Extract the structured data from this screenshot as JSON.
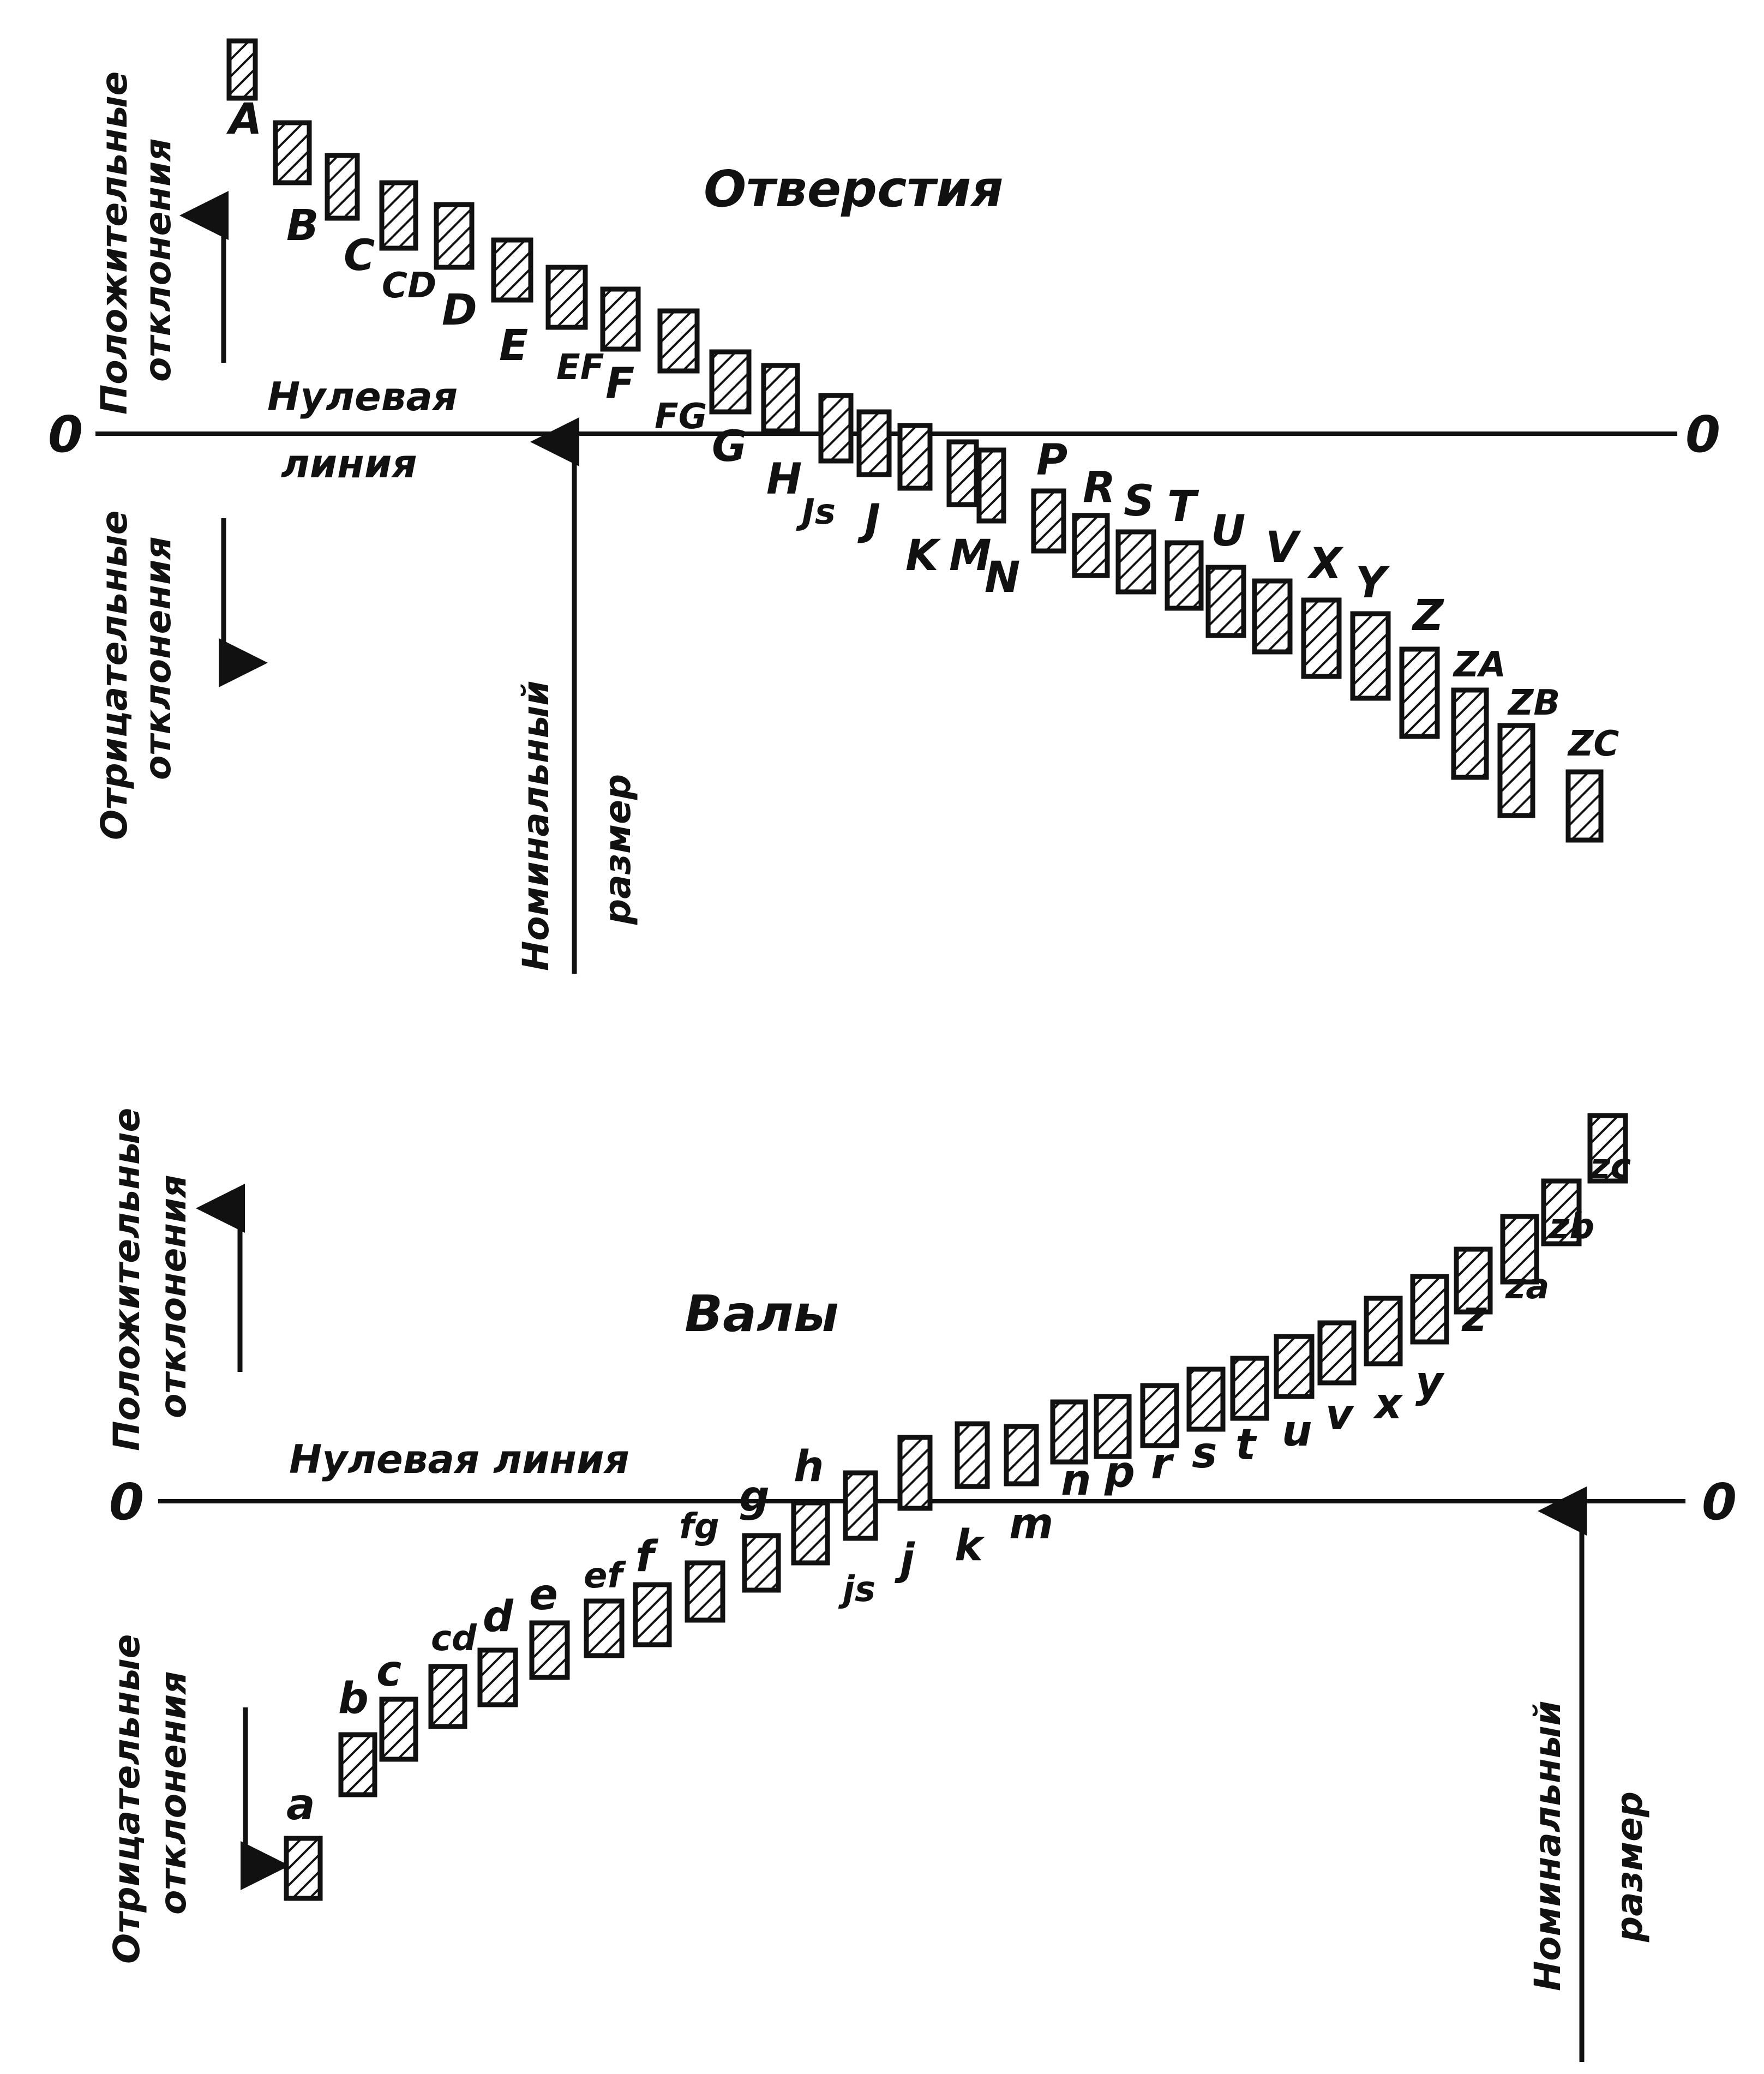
{
  "holes": {
    "title": "Отверстия",
    "zero_line_label": [
      "Нулевая",
      "линия"
    ],
    "zero_left": "0",
    "zero_right": "0",
    "positive_label": [
      "Положительные",
      "отклонения"
    ],
    "negative_label": [
      "Отрицательные",
      "отклонения"
    ],
    "nominal_label": [
      "Номинальный",
      "размер"
    ],
    "fields": [
      "A",
      "B",
      "C",
      "CD",
      "D",
      "E",
      "EF",
      "F",
      "FG",
      "G",
      "H",
      "Js",
      "J",
      "K",
      "M",
      "N",
      "P",
      "R",
      "S",
      "T",
      "U",
      "V",
      "X",
      "Y",
      "Z",
      "ZA",
      "ZB",
      "ZC"
    ]
  },
  "shafts": {
    "title": "Валы",
    "zero_line_label": "Нулевая линия",
    "zero_left": "0",
    "zero_right": "0",
    "positive_label": [
      "Положительные",
      "отклонения"
    ],
    "negative_label": [
      "Отрицательные",
      "отклонения"
    ],
    "nominal_label": [
      "Номинальный",
      "размер"
    ],
    "fields": [
      "a",
      "b",
      "c",
      "cd",
      "d",
      "e",
      "ef",
      "f",
      "fg",
      "g",
      "h",
      "js",
      "j",
      "k",
      "m",
      "n",
      "p",
      "r",
      "s",
      "t",
      "u",
      "v",
      "x",
      "y",
      "z",
      "za",
      "zb",
      "zc"
    ]
  }
}
